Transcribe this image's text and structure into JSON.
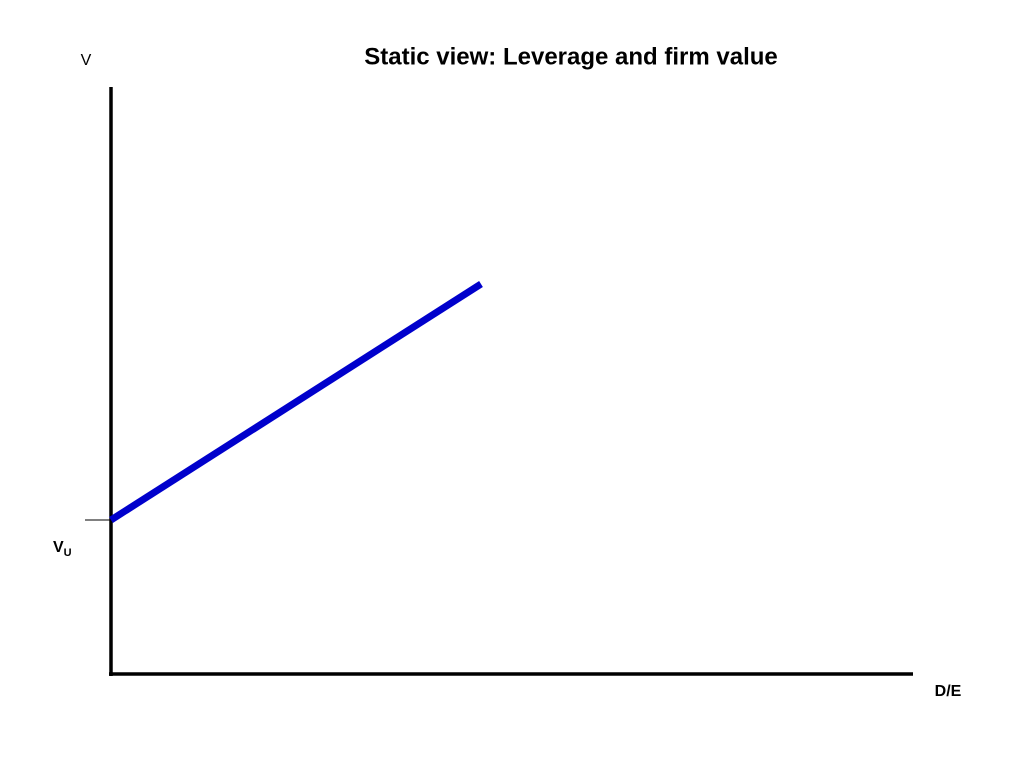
{
  "header": {
    "title": "Static view: Leverage and firm value"
  },
  "axes": {
    "y_label": "V",
    "x_label": "D/E"
  },
  "marker": {
    "label": "V",
    "subscript": "U"
  }
}
